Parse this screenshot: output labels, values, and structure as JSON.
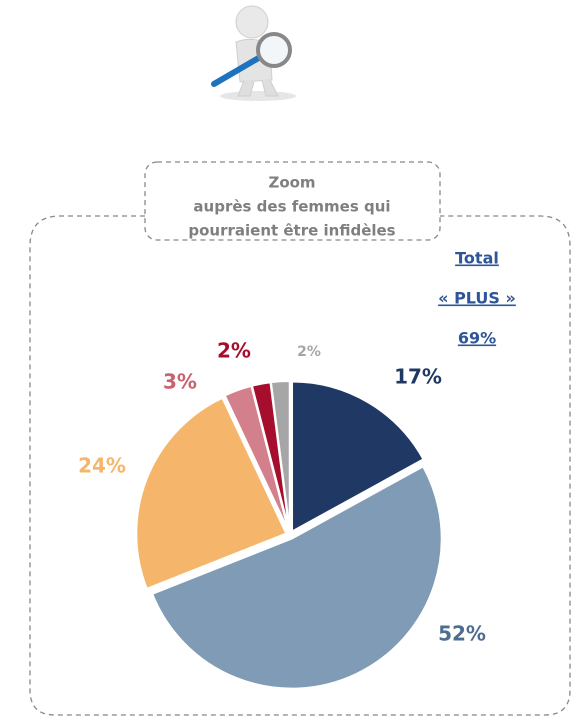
{
  "chart_data": {
    "type": "pie",
    "title_lines": [
      "Zoom",
      "auprès des femmes qui",
      "pourraient être infidèles"
    ],
    "annotation_lines": [
      "Total",
      "« PLUS »",
      "69%"
    ],
    "categories": [
      null,
      null,
      null,
      null,
      null,
      null
    ],
    "values": [
      17,
      52,
      24,
      3,
      2,
      2
    ],
    "value_labels": [
      "17%",
      "52%",
      "24%",
      "3%",
      "2%",
      "2%"
    ],
    "colors": [
      "#1f3864",
      "#7f9bb5",
      "#f5b66b",
      "#d4808c",
      "#a50f2d",
      "#a6a6a6"
    ],
    "label_colors": [
      "#1f3864",
      "#4f6d8f",
      "#f5b66b",
      "#c9626f",
      "#a50f2d",
      "#a6a6a6"
    ]
  }
}
